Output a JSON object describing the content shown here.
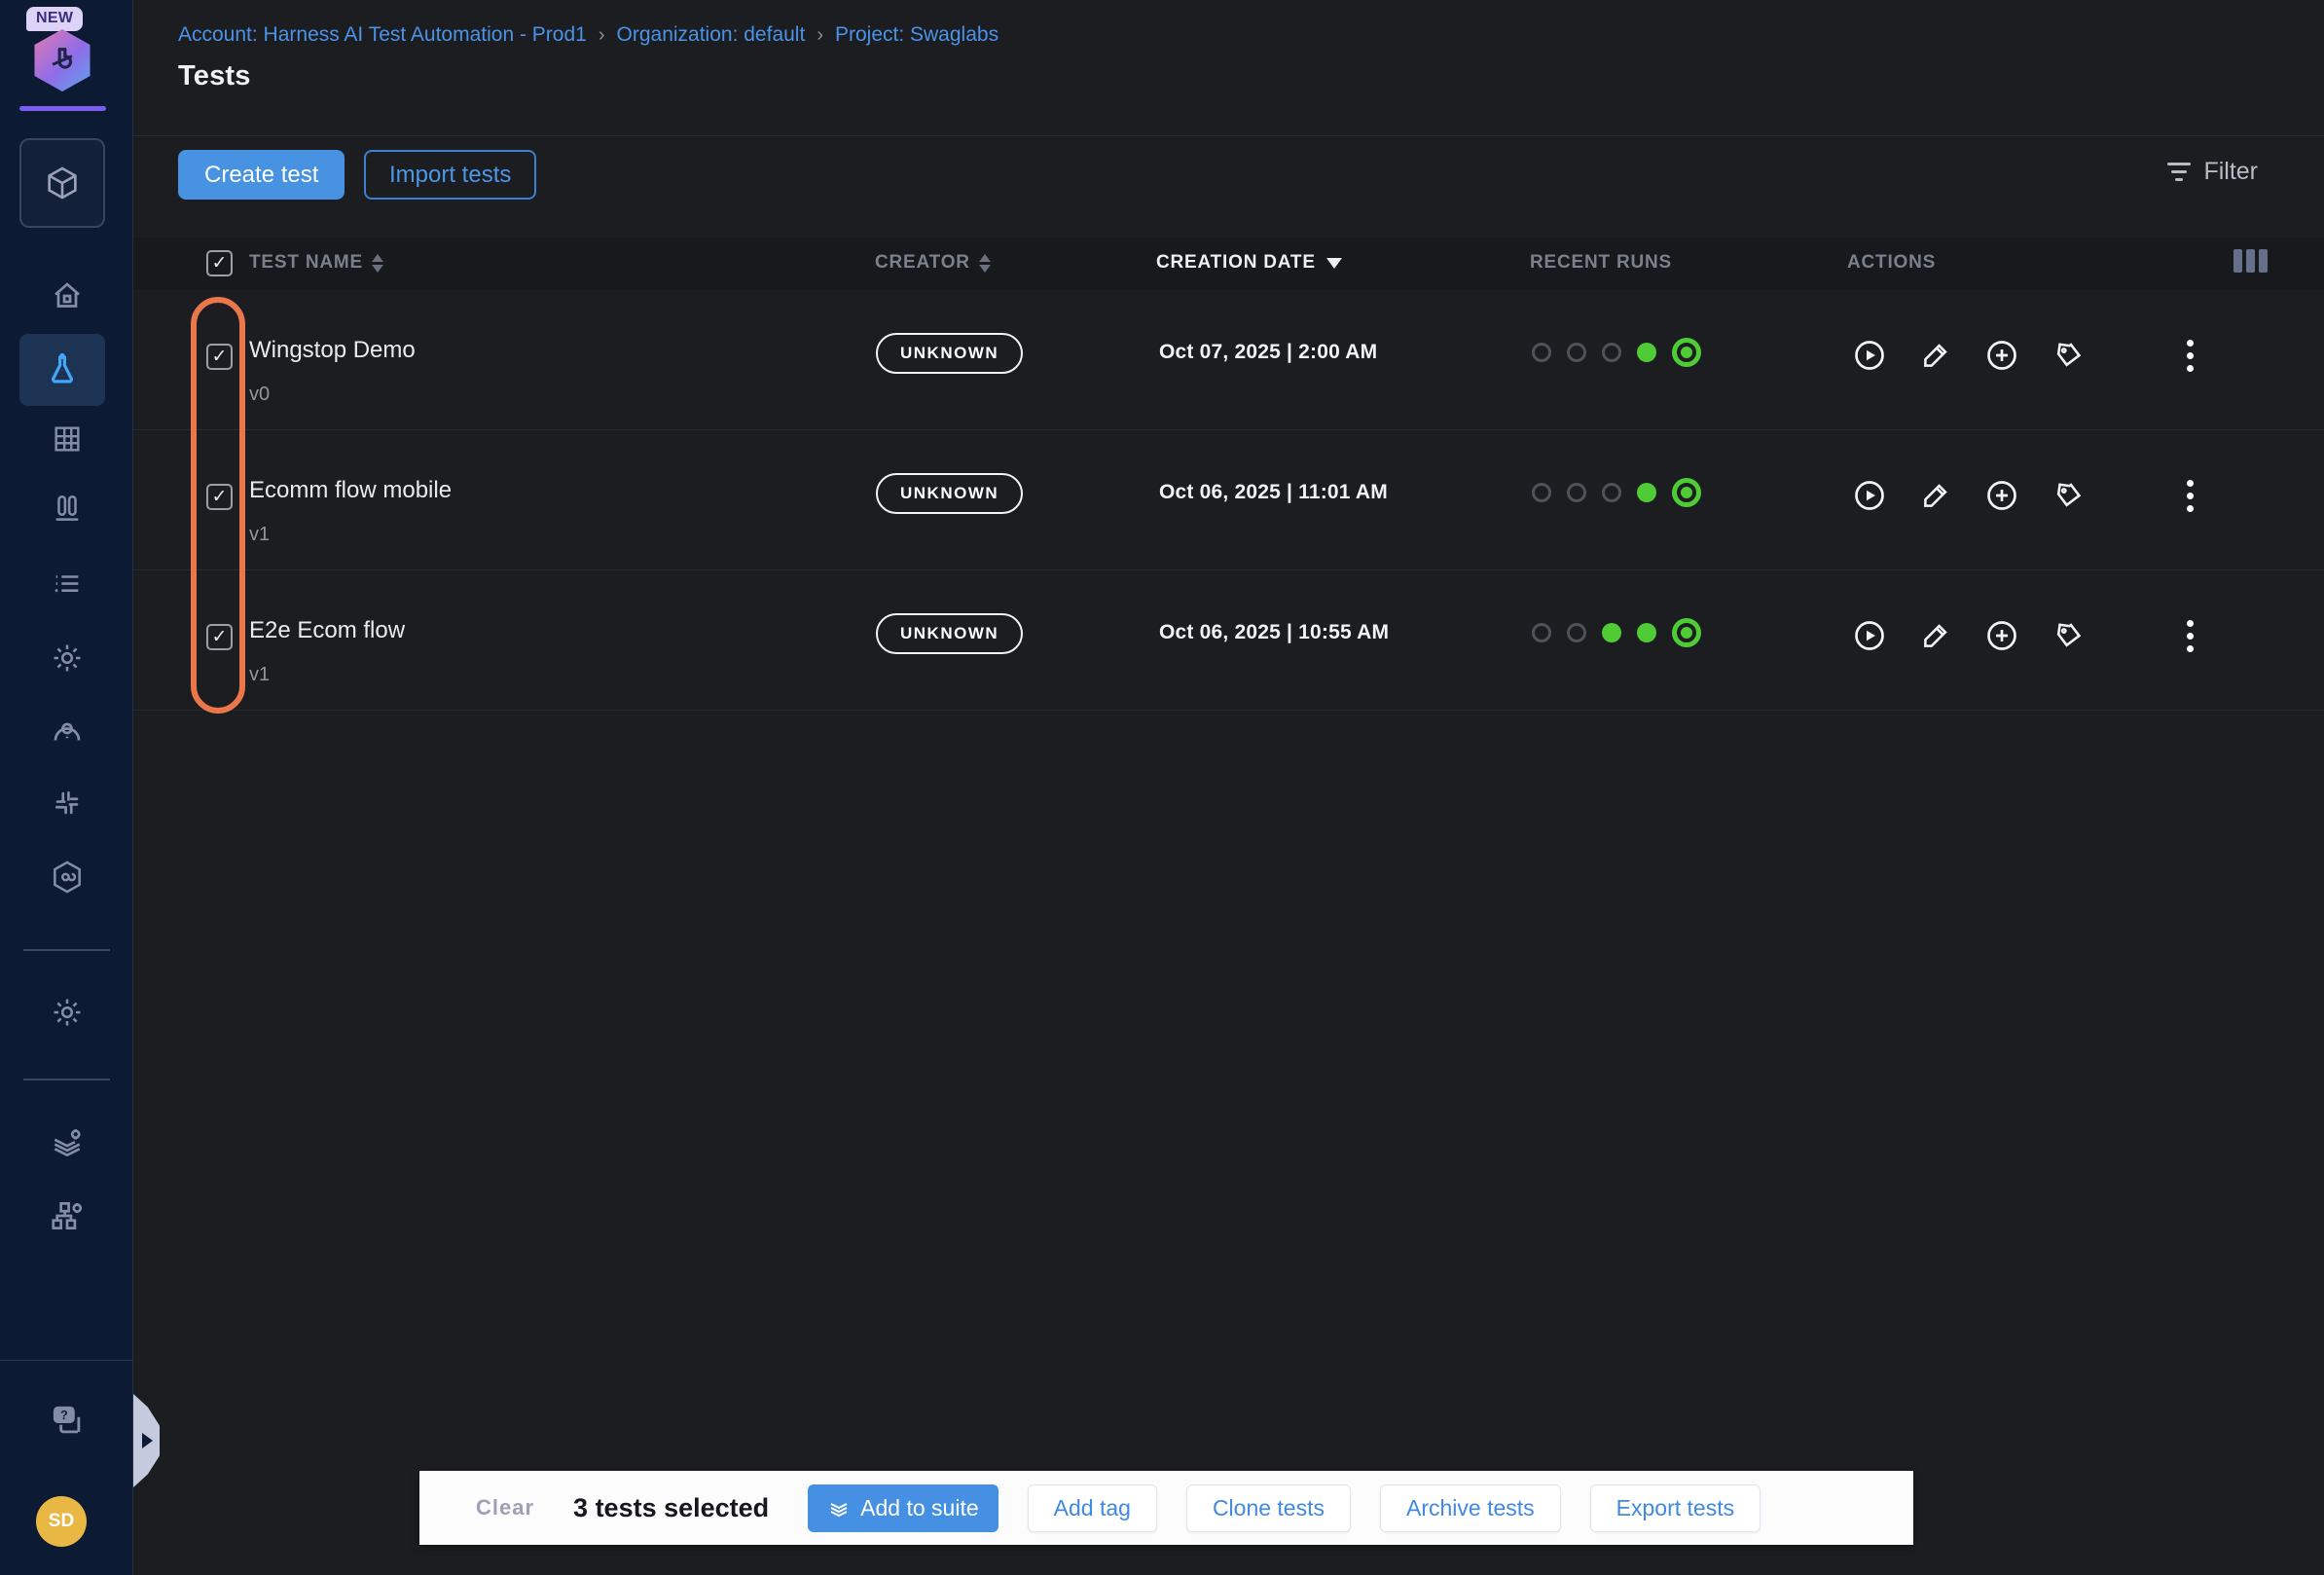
{
  "sidebar": {
    "new_badge": "NEW",
    "icons": [
      "cube-module",
      "home",
      "flask-tests",
      "grid",
      "suites",
      "list",
      "settings",
      "user-search",
      "integrations",
      "chain-hexagon",
      "project-settings",
      "layers-settings",
      "org-settings",
      "help-chat"
    ],
    "avatar_initials": "SD"
  },
  "breadcrumb": {
    "account": "Account: Harness AI Test Automation - Prod1",
    "organization": "Organization: default",
    "project": "Project: Swaglabs",
    "separator": "›"
  },
  "page": {
    "title": "Tests"
  },
  "toolbar": {
    "create_label": "Create test",
    "import_label": "Import tests",
    "filter_label": "Filter"
  },
  "table": {
    "columns": {
      "test_name": "TEST NAME",
      "creator": "CREATOR",
      "creation_date": "CREATION DATE",
      "recent_runs": "RECENT RUNS",
      "actions": "ACTIONS"
    },
    "sorted_by": "CREATION DATE descending",
    "rows": [
      {
        "name": "Wingstop Demo",
        "version": "v0",
        "creator": "UNKNOWN",
        "date": "Oct 07, 2025 | 2:00 AM",
        "runs": [
          "empty",
          "empty",
          "empty",
          "pass",
          "latest"
        ],
        "checked": true
      },
      {
        "name": "Ecomm flow mobile",
        "version": "v1",
        "creator": "UNKNOWN",
        "date": "Oct 06, 2025 | 11:01 AM",
        "runs": [
          "empty",
          "empty",
          "empty",
          "pass",
          "latest"
        ],
        "checked": true
      },
      {
        "name": "E2e Ecom flow",
        "version": "v1",
        "creator": "UNKNOWN",
        "date": "Oct 06, 2025 | 10:55 AM",
        "runs": [
          "empty",
          "empty",
          "pass",
          "pass",
          "latest"
        ],
        "checked": true
      }
    ],
    "row_action_icons": [
      "run-play",
      "edit-pencil",
      "add-plus",
      "tag",
      "more-kebab"
    ]
  },
  "selection_bar": {
    "clear_label": "Clear",
    "count_label": "3 tests selected",
    "add_to_suite_label": "Add to suite",
    "add_tag_label": "Add tag",
    "clone_label": "Clone tests",
    "archive_label": "Archive tests",
    "export_label": "Export tests"
  },
  "annotation": {
    "shape": "orange rounded ring around row checkboxes",
    "color": "#ea774a"
  },
  "colors": {
    "accent_blue": "#4792e1",
    "link_blue": "#4b93e8",
    "run_pass_green": "#4ecb35",
    "sidebar_navy": "#0c1b33",
    "content_bg": "#1b1d20",
    "annotation_orange": "#ea774a",
    "avatar_yellow": "#e9b844"
  },
  "checkmark": "✓"
}
